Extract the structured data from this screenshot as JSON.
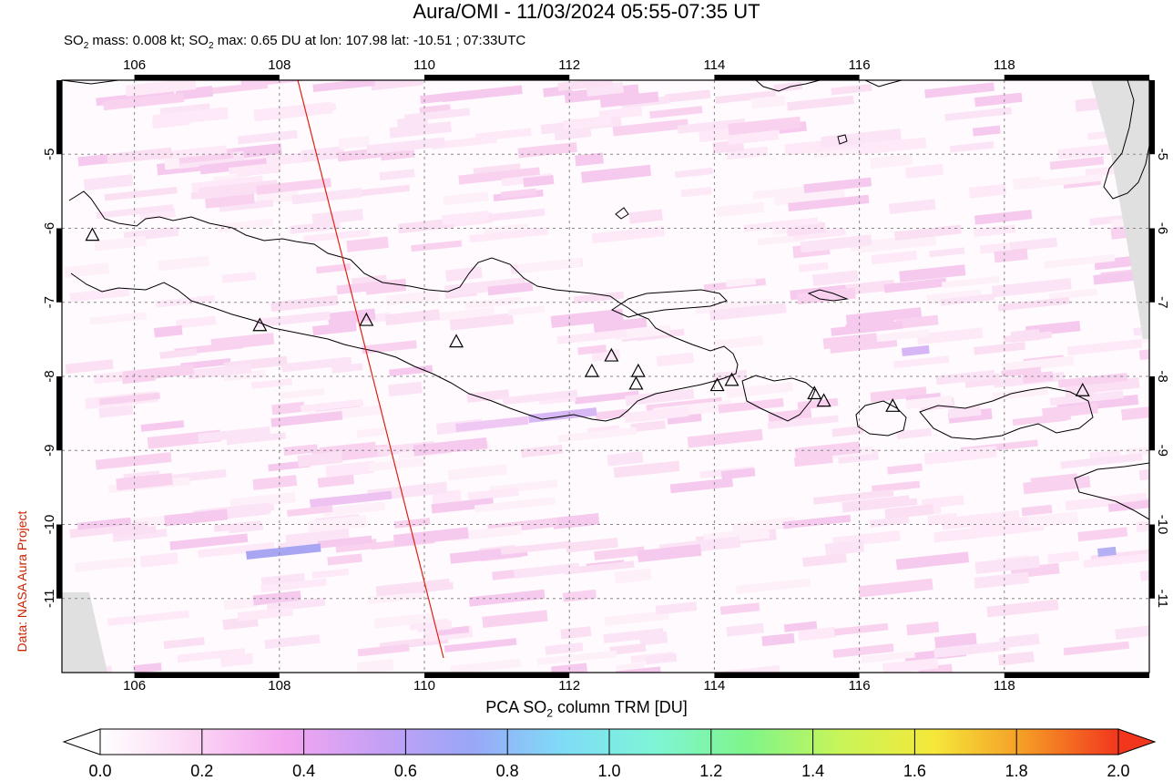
{
  "title": "Aura/OMI - 11/03/2024 05:55-07:35 UT",
  "subtitle": {
    "prefix": "SO",
    "sub": "2",
    "mid": " mass: 0.008 kt; SO",
    "sub2": "2",
    "rest": " max: 0.65 DU at lon: 107.98 lat: -10.51 ; 07:33UTC"
  },
  "side_credit": "Data: NASA Aura Project",
  "map": {
    "lon_range": [
      105,
      120
    ],
    "lat_range": [
      -12,
      -4
    ],
    "x_ticks": [
      "106",
      "108",
      "110",
      "112",
      "114",
      "116",
      "118"
    ],
    "y_ticks": [
      "-5",
      "-6",
      "-7",
      "-8",
      "-9",
      "-10",
      "-11"
    ],
    "volcano_marker": "triangle-icon",
    "coastline_color": "#000000",
    "orbit_line_color": "#dd2211"
  },
  "colorbar": {
    "title_prefix": "PCA SO",
    "title_sub": "2",
    "title_suffix": " column TRM [DU]",
    "ticks": [
      "0.0",
      "0.2",
      "0.4",
      "0.6",
      "0.8",
      "1.0",
      "1.2",
      "1.4",
      "1.6",
      "1.8",
      "2.0"
    ],
    "colors": [
      "#ffffff",
      "#fbd6f4",
      "#f3a6f0",
      "#c6a0f5",
      "#9aa6f7",
      "#7fdcf7",
      "#7ff5d6",
      "#7ff58a",
      "#c8f558",
      "#f5e83a",
      "#f59a26",
      "#f2361d"
    ]
  }
}
